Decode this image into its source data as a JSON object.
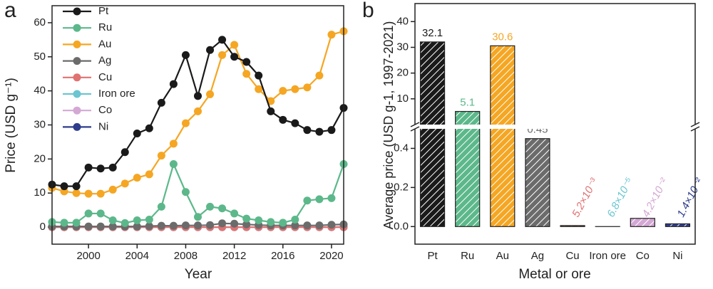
{
  "chart_data": [
    {
      "type": "line",
      "panel_label": "a",
      "xlabel": "Year",
      "ylabel": "Price (USD g⁻¹)",
      "x": [
        1997,
        1998,
        1999,
        2000,
        2001,
        2002,
        2003,
        2004,
        2005,
        2006,
        2007,
        2008,
        2009,
        2010,
        2011,
        2012,
        2013,
        2014,
        2015,
        2016,
        2017,
        2018,
        2019,
        2020,
        2021
      ],
      "xlim": [
        1997,
        2021
      ],
      "xticks": [
        2000,
        2004,
        2008,
        2012,
        2016,
        2020
      ],
      "ylim": [
        -5,
        65
      ],
      "yticks": [
        0,
        10,
        20,
        30,
        40,
        50,
        60
      ],
      "legend": "upper left",
      "series": [
        {
          "name": "Pt",
          "color": "#1a1a1a",
          "values": [
            12.5,
            12,
            12,
            17.5,
            17.2,
            17.5,
            22,
            27.5,
            29,
            36.5,
            42,
            50.5,
            38.5,
            52,
            55,
            50,
            48.5,
            44.5,
            34,
            31.5,
            30.5,
            28.5,
            28,
            28.5,
            35
          ]
        },
        {
          "name": "Ru",
          "color": "#5cb88a",
          "values": [
            1.5,
            1.3,
            1.3,
            4,
            4,
            2,
            1.2,
            2,
            2.2,
            6,
            18.5,
            10.3,
            3,
            6,
            5.5,
            4,
            2.5,
            2,
            1.5,
            1.3,
            2.2,
            7.8,
            8.2,
            8.5,
            18.5
          ]
        },
        {
          "name": "Au",
          "color": "#f5a623",
          "values": [
            11.5,
            10.5,
            10,
            9.8,
            9.8,
            11,
            12.8,
            14.5,
            15.5,
            21,
            24.5,
            30.5,
            34,
            39,
            50.5,
            53.5,
            45,
            40.5,
            37,
            40,
            40.5,
            41,
            44.5,
            56.5,
            57.5
          ]
        },
        {
          "name": "Ag",
          "color": "#6b6b6b",
          "values": [
            0.2,
            0.2,
            0.2,
            0.2,
            0.2,
            0.2,
            0.2,
            0.2,
            0.3,
            0.4,
            0.4,
            0.5,
            0.5,
            0.6,
            1.1,
            1,
            0.8,
            0.6,
            0.5,
            0.5,
            0.5,
            0.5,
            0.5,
            0.7,
            0.8
          ]
        },
        {
          "name": "Cu",
          "color": "#e07272",
          "values": [
            0,
            0,
            0,
            0,
            0,
            0,
            0,
            0,
            0,
            0,
            0,
            0,
            0,
            0,
            0,
            0,
            0,
            0,
            0,
            0,
            0,
            0,
            0,
            0,
            0
          ]
        },
        {
          "name": "Iron ore",
          "color": "#6cc5d0",
          "values": [
            0,
            0,
            0,
            0,
            0,
            0,
            0,
            0,
            0,
            0,
            0,
            0,
            0,
            0,
            0,
            0,
            0,
            0,
            0,
            0,
            0,
            0,
            0,
            0,
            0
          ]
        },
        {
          "name": "Co",
          "color": "#d4a8d4",
          "values": [
            0,
            0,
            0,
            0,
            0,
            0,
            0,
            0,
            0,
            0,
            0.1,
            0.1,
            0,
            0,
            0,
            0,
            0,
            0,
            0,
            0,
            0.1,
            0.1,
            0,
            0,
            0.1
          ]
        },
        {
          "name": "Ni",
          "color": "#2e3d8c",
          "values": [
            0,
            0,
            0,
            0,
            0,
            0,
            0,
            0,
            0,
            0,
            0,
            0,
            0,
            0,
            0,
            0,
            0,
            0,
            0,
            0,
            0,
            0,
            0,
            0,
            0
          ]
        }
      ]
    },
    {
      "type": "bar",
      "panel_label": "b",
      "xlabel": "Metal or ore",
      "ylabel": "Average price (USD g-1, 1997-2021)",
      "categories": [
        "Pt",
        "Ru",
        "Au",
        "Ag",
        "Cu",
        "Iron ore",
        "Co",
        "Ni"
      ],
      "values": [
        32.1,
        5.1,
        30.6,
        0.45,
        0.0052,
        6.8e-05,
        0.042,
        0.014
      ],
      "value_labels": [
        "32.1",
        "5.1",
        "30.6",
        "0.45",
        "5.2×10⁻³",
        "6.8×10⁻⁵",
        "4.2×10⁻²",
        "1.4×10⁻²"
      ],
      "colors": [
        "#1a1a1a",
        "#5cb88a",
        "#f5a623",
        "#6b6b6b",
        "#e07272",
        "#6cc5d0",
        "#d4a8d4",
        "#2e3d8c"
      ],
      "hatch": true,
      "broken_axis": true,
      "ylim": [
        -0.09,
        0.5
      ],
      "yticks": [
        {
          "value": 0,
          "label": "0.0"
        },
        0.2,
        0.4
      ],
      "ylim_upper": [
        0,
        47
      ],
      "yticks_upper": [
        10,
        20,
        30,
        40
      ]
    }
  ]
}
